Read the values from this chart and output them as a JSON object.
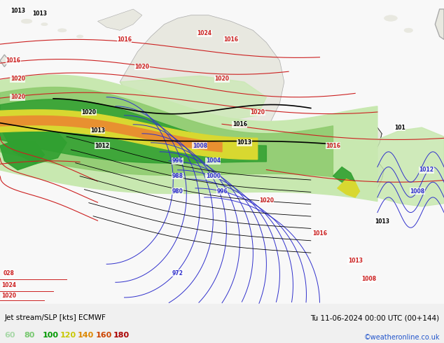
{
  "title_left": "Jet stream/SLP [kts] ECMWF",
  "title_right": "Tu 11-06-2024 00:00 UTC (00+144)",
  "credit": "©weatheronline.co.uk",
  "legend_values": [
    60,
    80,
    100,
    120,
    140,
    160,
    180
  ],
  "legend_colors": [
    "#b8ddb0",
    "#78c878",
    "#00aa00",
    "#c8c800",
    "#e89000",
    "#e05000",
    "#c00000"
  ],
  "background_color": "#f0f0f0",
  "ocean_color": "#f8f8f8",
  "land_color": "#e8e8e0",
  "figsize": [
    6.34,
    4.9
  ],
  "dpi": 100,
  "jet_colors": {
    "light_green": "#c8e8b0",
    "medium_green": "#90cc70",
    "dark_green": "#30a030",
    "yellow": "#d8d830",
    "orange": "#e89030",
    "dark_orange": "#d05010"
  }
}
